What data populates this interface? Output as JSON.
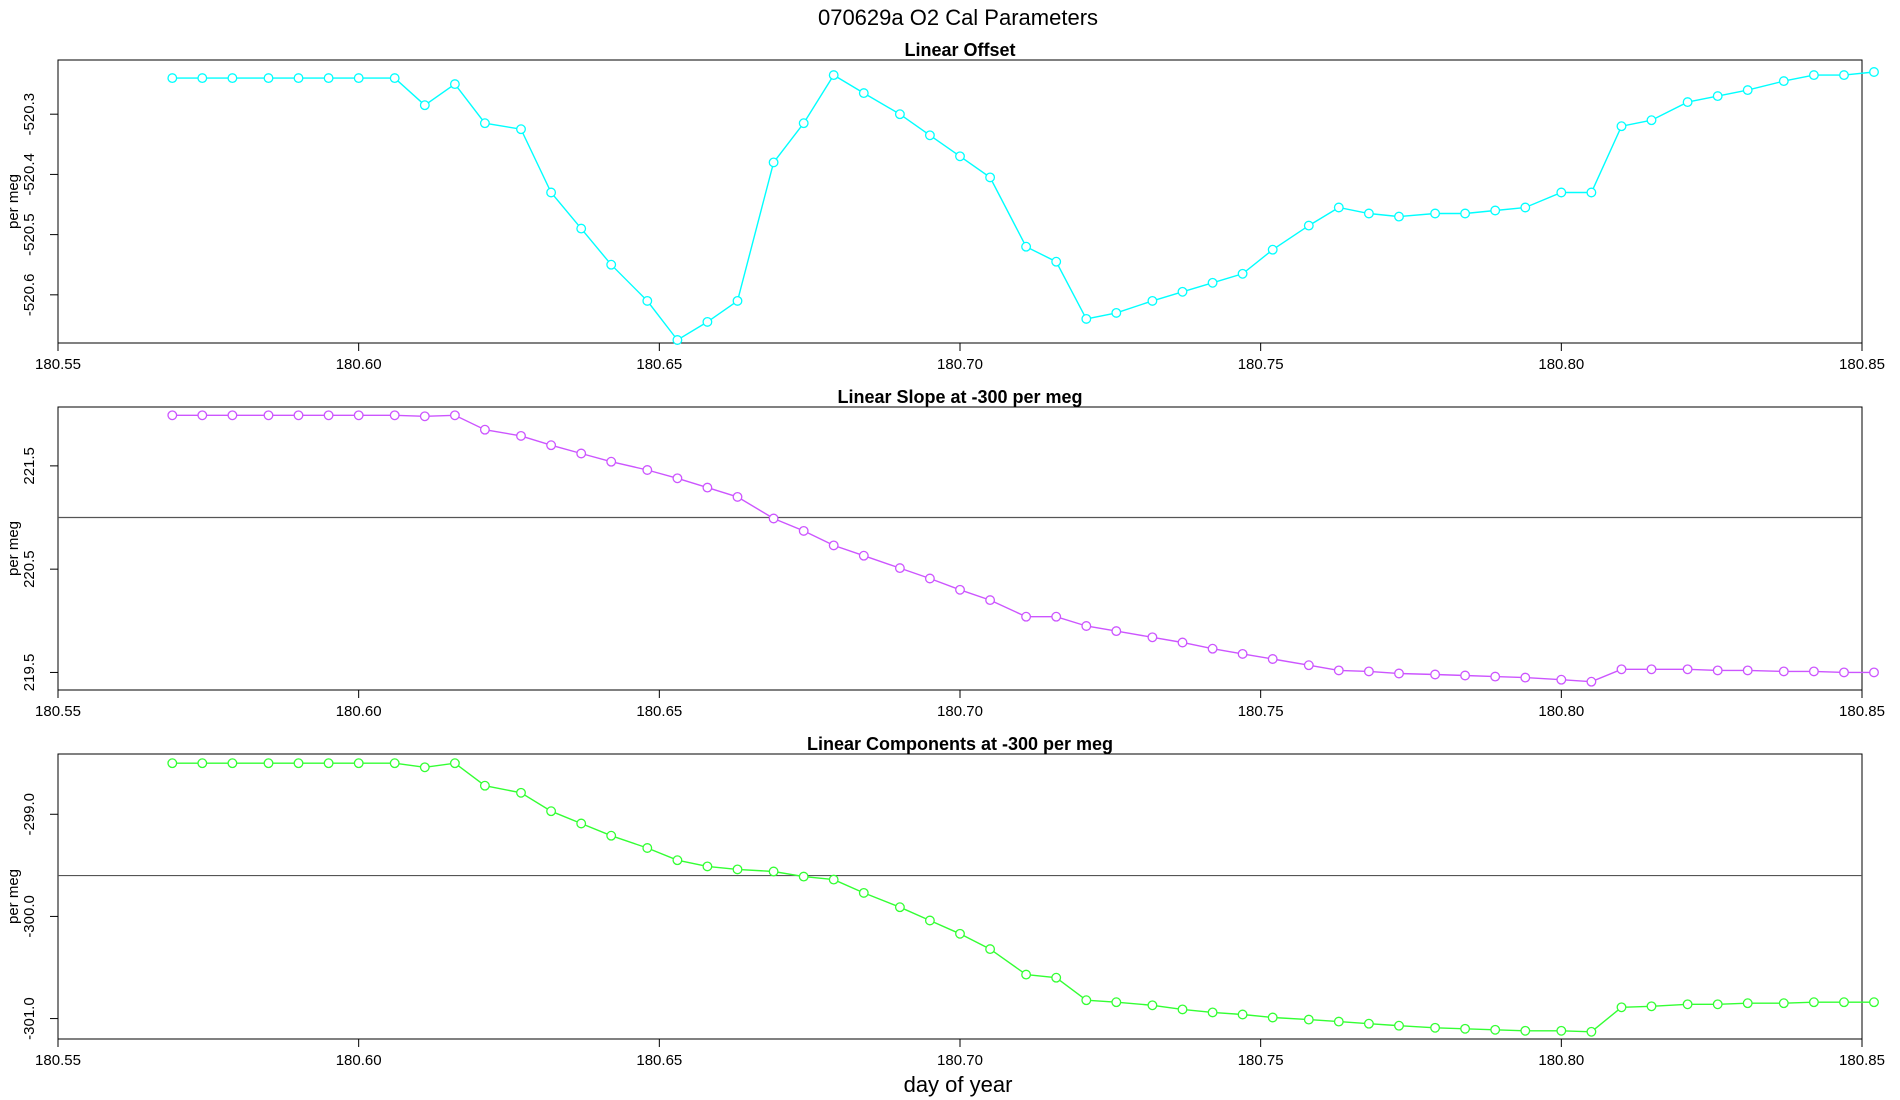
{
  "figure": {
    "title": "070629a   O2 Cal Parameters",
    "xlabel": "day of year"
  },
  "chart_data": [
    {
      "type": "line",
      "title": "Linear Offset",
      "ylabel": "per meg",
      "color": "#00ffff",
      "xlim": [
        180.55,
        180.85
      ],
      "ylim": [
        -520.68,
        -520.21
      ],
      "x_ticks": [
        "180.55",
        "180.60",
        "180.65",
        "180.70",
        "180.75",
        "180.80",
        "180.85"
      ],
      "y_ticks": [
        "-520.3",
        "-520.4",
        "-520.5",
        "-520.6"
      ],
      "reference_line": null,
      "x": [
        180.569,
        180.574,
        180.579,
        180.585,
        180.59,
        180.595,
        180.6,
        180.606,
        180.611,
        180.616,
        180.621,
        180.627,
        180.632,
        180.637,
        180.642,
        180.648,
        180.653,
        180.658,
        180.663,
        180.669,
        180.674,
        180.679,
        180.684,
        180.69,
        180.695,
        180.7,
        180.705,
        180.711,
        180.716,
        180.721,
        180.726,
        180.732,
        180.737,
        180.742,
        180.747,
        180.752,
        180.758,
        180.763,
        180.768,
        180.773,
        180.779,
        180.784,
        180.789,
        180.794,
        180.8,
        180.805,
        180.81,
        180.815,
        180.821,
        180.826,
        180.831,
        180.837,
        180.842,
        180.847,
        180.852
      ],
      "y": [
        -520.24,
        -520.24,
        -520.24,
        -520.24,
        -520.24,
        -520.24,
        -520.24,
        -520.24,
        -520.285,
        -520.25,
        -520.315,
        -520.325,
        -520.43,
        -520.49,
        -520.55,
        -520.61,
        -520.675,
        -520.645,
        -520.61,
        -520.38,
        -520.315,
        -520.235,
        -520.265,
        -520.3,
        -520.335,
        -520.37,
        -520.405,
        -520.52,
        -520.545,
        -520.64,
        -520.63,
        -520.61,
        -520.595,
        -520.58,
        -520.565,
        -520.525,
        -520.485,
        -520.455,
        -520.465,
        -520.47,
        -520.465,
        -520.465,
        -520.46,
        -520.455,
        -520.43,
        -520.43,
        -520.32,
        -520.31,
        -520.28,
        -520.27,
        -520.26,
        -520.245,
        -520.235,
        -520.235,
        -520.23
      ]
    },
    {
      "type": "line",
      "title": "Linear Slope at -300 per meg",
      "ylabel": "per meg",
      "color": "#cc55ff",
      "xlim": [
        180.55,
        180.85
      ],
      "ylim": [
        219.33,
        222.07
      ],
      "x_ticks": [
        "180.55",
        "180.60",
        "180.65",
        "180.70",
        "180.75",
        "180.80",
        "180.85"
      ],
      "y_ticks": [
        "219.5",
        "220.5",
        "221.5"
      ],
      "reference_line": 221,
      "x": [
        180.569,
        180.574,
        180.579,
        180.585,
        180.59,
        180.595,
        180.6,
        180.606,
        180.611,
        180.616,
        180.621,
        180.627,
        180.632,
        180.637,
        180.642,
        180.648,
        180.653,
        180.658,
        180.663,
        180.669,
        180.674,
        180.679,
        180.684,
        180.69,
        180.695,
        180.7,
        180.705,
        180.711,
        180.716,
        180.721,
        180.726,
        180.732,
        180.737,
        180.742,
        180.747,
        180.752,
        180.758,
        180.763,
        180.768,
        180.773,
        180.779,
        180.784,
        180.789,
        180.794,
        180.8,
        180.805,
        180.81,
        180.815,
        180.821,
        180.826,
        180.831,
        180.837,
        180.842,
        180.847,
        180.852
      ],
      "y": [
        221.99,
        221.99,
        221.99,
        221.99,
        221.99,
        221.99,
        221.99,
        221.99,
        221.98,
        221.99,
        221.85,
        221.79,
        221.7,
        221.62,
        221.54,
        221.46,
        221.38,
        221.29,
        221.2,
        220.99,
        220.87,
        220.73,
        220.63,
        220.51,
        220.41,
        220.3,
        220.2,
        220.04,
        220.04,
        219.95,
        219.9,
        219.84,
        219.79,
        219.73,
        219.68,
        219.63,
        219.57,
        219.52,
        219.51,
        219.49,
        219.48,
        219.47,
        219.46,
        219.45,
        219.43,
        219.41,
        219.53,
        219.53,
        219.53,
        219.52,
        219.52,
        219.51,
        219.51,
        219.5,
        219.5
      ]
    },
    {
      "type": "line",
      "title": "Linear Components at -300 per meg",
      "ylabel": "per meg",
      "color": "#33ff33",
      "xlim": [
        180.55,
        180.85
      ],
      "ylim": [
        -301.2,
        -298.41
      ],
      "x_ticks": [
        "180.55",
        "180.60",
        "180.65",
        "180.70",
        "180.75",
        "180.80",
        "180.85"
      ],
      "y_ticks": [
        "-299.0",
        "-300.0",
        "-301.0"
      ],
      "reference_line": -299.6,
      "x": [
        180.569,
        180.574,
        180.579,
        180.585,
        180.59,
        180.595,
        180.6,
        180.606,
        180.611,
        180.616,
        180.621,
        180.627,
        180.632,
        180.637,
        180.642,
        180.648,
        180.653,
        180.658,
        180.663,
        180.669,
        180.674,
        180.679,
        180.684,
        180.69,
        180.695,
        180.7,
        180.705,
        180.711,
        180.716,
        180.721,
        180.726,
        180.732,
        180.737,
        180.742,
        180.747,
        180.752,
        180.758,
        180.763,
        180.768,
        180.773,
        180.779,
        180.784,
        180.789,
        180.794,
        180.8,
        180.805,
        180.81,
        180.815,
        180.821,
        180.826,
        180.831,
        180.837,
        180.842,
        180.847,
        180.852
      ],
      "y": [
        -298.5,
        -298.5,
        -298.5,
        -298.5,
        -298.5,
        -298.5,
        -298.5,
        -298.5,
        -298.54,
        -298.5,
        -298.72,
        -298.79,
        -298.97,
        -299.09,
        -299.21,
        -299.33,
        -299.45,
        -299.51,
        -299.54,
        -299.56,
        -299.61,
        -299.64,
        -299.77,
        -299.91,
        -300.04,
        -300.17,
        -300.32,
        -300.57,
        -300.6,
        -300.82,
        -300.84,
        -300.87,
        -300.91,
        -300.94,
        -300.96,
        -300.99,
        -301.01,
        -301.03,
        -301.05,
        -301.07,
        -301.09,
        -301.1,
        -301.11,
        -301.12,
        -301.12,
        -301.13,
        -300.89,
        -300.88,
        -300.86,
        -300.86,
        -300.85,
        -300.85,
        -300.84,
        -300.84,
        -300.84
      ]
    }
  ]
}
